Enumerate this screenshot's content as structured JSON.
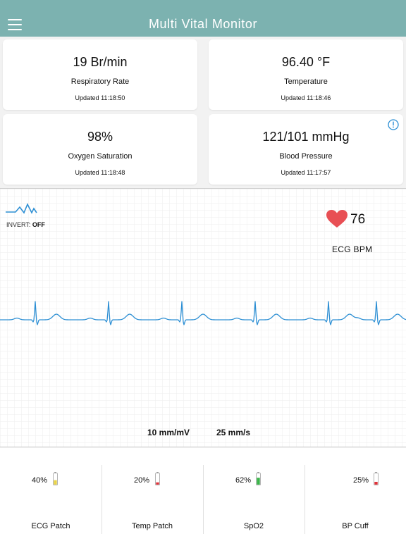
{
  "header": {
    "title": "Multi Vital Monitor",
    "menu_icon": "hamburger-menu-icon"
  },
  "vitals": [
    {
      "value": "19 Br/min",
      "label": "Respiratory Rate",
      "updated": "Updated 11:18:50"
    },
    {
      "value": "96.40 °F",
      "label": "Temperature",
      "updated": "Updated 11:18:46"
    },
    {
      "value": "98%",
      "label": "Oxygen Saturation",
      "updated": "Updated 11:18:48"
    },
    {
      "value": "121/101 mmHg",
      "label": "Blood Pressure",
      "updated": "Updated 11:17:57",
      "alert_icon": "info-icon"
    }
  ],
  "ecg": {
    "invert_label": "INVERT:",
    "invert_state": "OFF",
    "bpm": "76",
    "bpm_label": "ECG BPM",
    "scale_amplitude": "10 mm/mV",
    "scale_speed": "25 mm/s",
    "trace_color": "#2d8fd4",
    "heart_color": "#e84f54"
  },
  "devices": [
    {
      "name": "ECG Patch",
      "battery": "40%",
      "battery_color": "#e8d34a",
      "level": 0.4
    },
    {
      "name": "Temp Patch",
      "battery": "20%",
      "battery_color": "#e0323a",
      "level": 0.2
    },
    {
      "name": "SpO2",
      "battery": "62%",
      "battery_color": "#3bb54a",
      "level": 0.62
    },
    {
      "name": "BP Cuff",
      "battery": "25%",
      "battery_color": "#e0323a",
      "level": 0.25
    }
  ]
}
